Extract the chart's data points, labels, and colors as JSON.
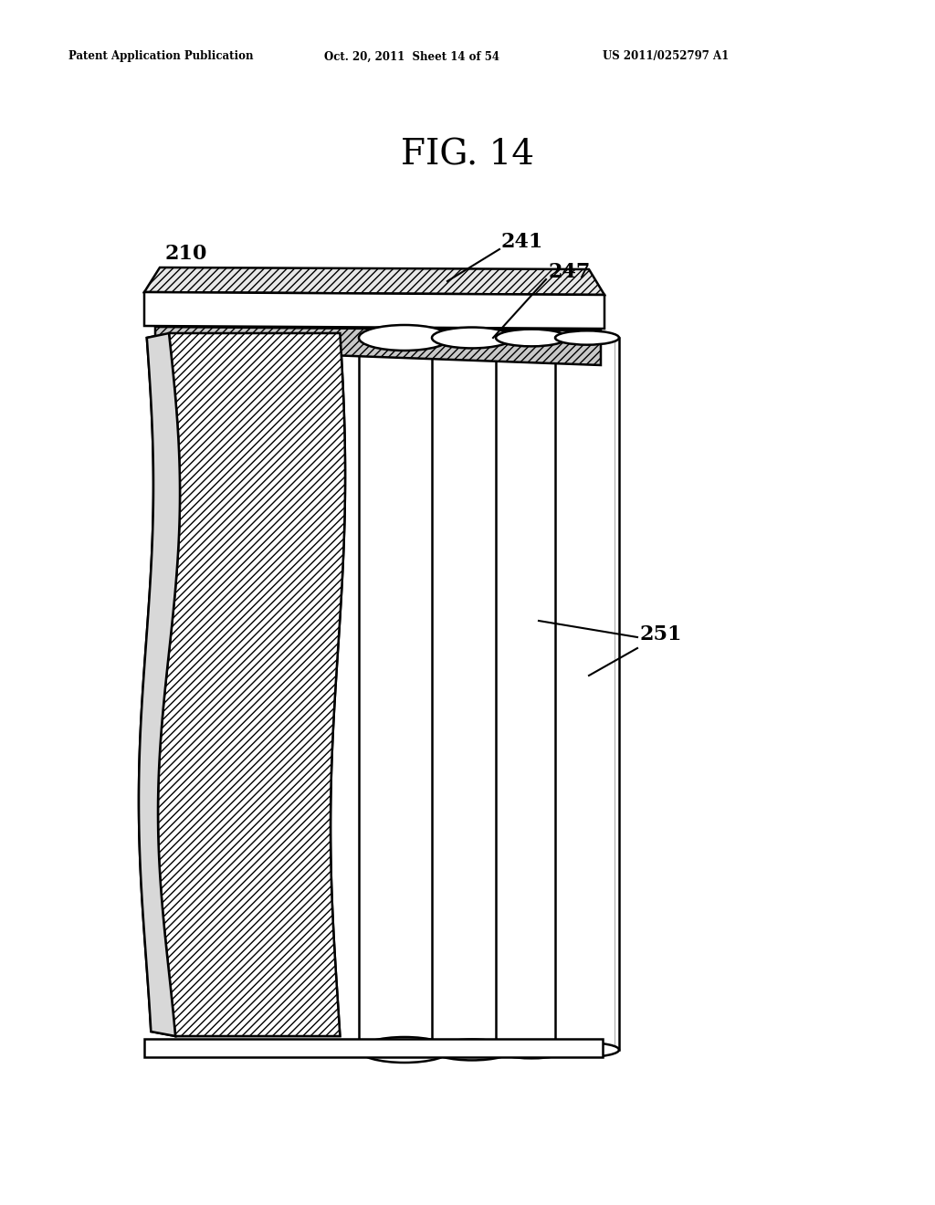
{
  "bg_color": "#ffffff",
  "line_color": "#000000",
  "fig_title": "FIG. 14",
  "header_left": "Patent Application Publication",
  "header_mid": "Oct. 20, 2011  Sheet 14 of 54",
  "header_right": "US 2011/0252797 A1",
  "label_210": "210",
  "label_241": "241",
  "label_247": "247",
  "label_251": "251"
}
